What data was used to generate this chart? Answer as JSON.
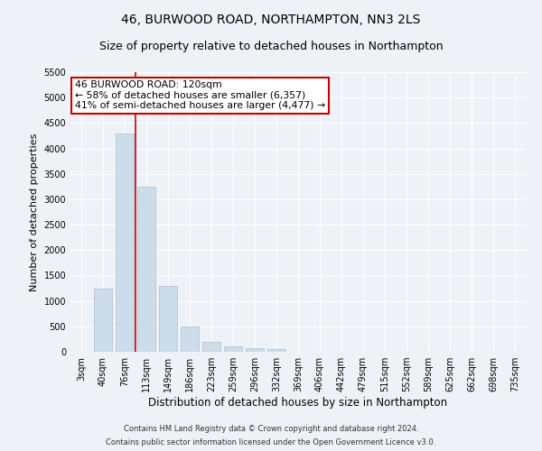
{
  "title": "46, BURWOOD ROAD, NORTHAMPTON, NN3 2LS",
  "subtitle": "Size of property relative to detached houses in Northampton",
  "xlabel": "Distribution of detached houses by size in Northampton",
  "ylabel": "Number of detached properties",
  "categories": [
    "3sqm",
    "40sqm",
    "76sqm",
    "113sqm",
    "149sqm",
    "186sqm",
    "223sqm",
    "259sqm",
    "296sqm",
    "332sqm",
    "369sqm",
    "406sqm",
    "442sqm",
    "479sqm",
    "515sqm",
    "552sqm",
    "589sqm",
    "625sqm",
    "662sqm",
    "698sqm",
    "735sqm"
  ],
  "values": [
    0,
    1250,
    4300,
    3250,
    1300,
    500,
    200,
    100,
    75,
    60,
    0,
    0,
    0,
    0,
    0,
    0,
    0,
    0,
    0,
    0,
    0
  ],
  "bar_color": "#ccdcea",
  "bar_edgecolor": "#aabfd4",
  "vline_position": 2.5,
  "vline_color": "#cc0000",
  "annotation_line1": "46 BURWOOD ROAD: 120sqm",
  "annotation_line2": "← 58% of detached houses are smaller (6,357)",
  "annotation_line3": "41% of semi-detached houses are larger (4,477) →",
  "annotation_box_color": "#ffffff",
  "annotation_box_edgecolor": "#cc0000",
  "ylim": [
    0,
    5500
  ],
  "yticks": [
    0,
    500,
    1000,
    1500,
    2000,
    2500,
    3000,
    3500,
    4000,
    4500,
    5000,
    5500
  ],
  "footer1": "Contains HM Land Registry data © Crown copyright and database right 2024.",
  "footer2": "Contains public sector information licensed under the Open Government Licence v3.0.",
  "background_color": "#eef2f7",
  "grid_color": "#ffffff",
  "title_fontsize": 10,
  "subtitle_fontsize": 9,
  "tick_fontsize": 7,
  "ylabel_fontsize": 8,
  "xlabel_fontsize": 8.5,
  "footer_fontsize": 6,
  "annotation_fontsize": 7.8
}
